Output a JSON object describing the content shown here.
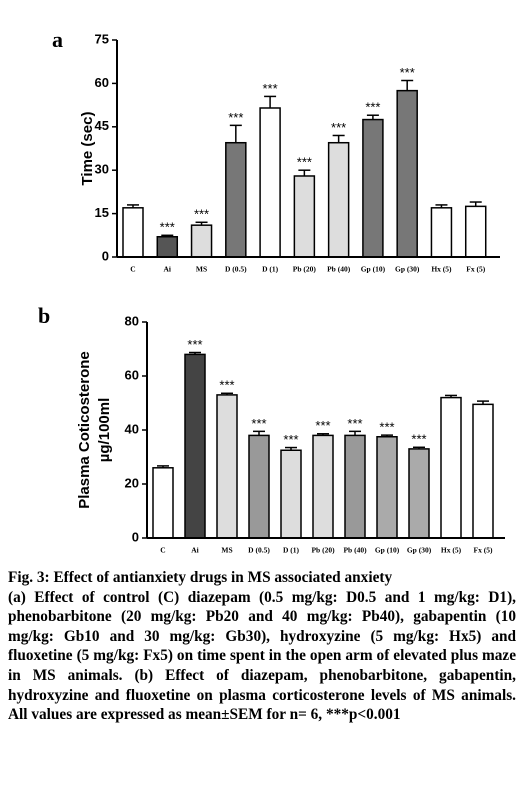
{
  "chart_data": [
    {
      "type": "bar",
      "panel": "a",
      "ylabel": "Time (sec)",
      "categories": [
        "C",
        "Ai",
        "MS",
        "D (0.5)",
        "D (1)",
        "Pb (20)",
        "Pb (40)",
        "Gp (10)",
        "Gp (30)",
        "Hx (5)",
        "Fx (5)"
      ],
      "values": [
        17,
        7,
        11,
        39.5,
        51.5,
        28,
        39.5,
        47.5,
        57.5,
        17,
        17.5
      ],
      "errors": [
        1,
        0.5,
        1,
        6,
        4,
        2,
        2.5,
        1.5,
        3.5,
        1,
        1.5
      ],
      "colors": [
        "#ffffff",
        "#555555",
        "#dddddd",
        "#777777",
        "#ffffff",
        "#dddddd",
        "#dddddd",
        "#777777",
        "#777777",
        "#ffffff",
        "#ffffff"
      ],
      "significance": [
        null,
        "***",
        "***",
        "***",
        "***",
        "***",
        "***",
        "***",
        "***",
        null,
        null
      ],
      "ylim": [
        0,
        75
      ],
      "yticks": [
        0,
        15,
        30,
        45,
        60,
        75
      ]
    },
    {
      "type": "bar",
      "panel": "b",
      "ylabel": "Plasma Coticosterone",
      "ylabel_unit": "µg/100ml",
      "categories": [
        "C",
        "Ai",
        "MS",
        "D (0.5)",
        "D (1)",
        "Pb (20)",
        "Pb (40)",
        "Gp (10)",
        "Gp (30)",
        "Hx (5)",
        "Fx (5)"
      ],
      "values": [
        26,
        68,
        53,
        38,
        32.5,
        38,
        38,
        37.5,
        33,
        52,
        49.5
      ],
      "errors": [
        0.7,
        0.7,
        0.6,
        1.5,
        1,
        0.6,
        1.5,
        0.6,
        0.6,
        0.8,
        1.2
      ],
      "colors": [
        "#ffffff",
        "#444444",
        "#dddddd",
        "#999999",
        "#dddddd",
        "#dddddd",
        "#999999",
        "#aaaaaa",
        "#aaaaaa",
        "#ffffff",
        "#ffffff"
      ],
      "significance": [
        null,
        "***",
        "***",
        "***",
        "***",
        "***",
        "***",
        "***",
        "***",
        null,
        null
      ],
      "ylim": [
        0,
        80
      ],
      "yticks": [
        0,
        20,
        40,
        60,
        80
      ]
    }
  ],
  "caption": {
    "title": "Fig. 3: Effect of antianxiety drugs in MS associated anxiety",
    "body": "(a) Effect of control (C) diazepam (0.5 mg/kg: D0.5 and 1 mg/kg: D1), phenobarbitone (20 mg/kg: Pb20 and 40 mg/kg: Pb40), gabapentin (10 mg/kg: Gb10 and 30 mg/kg: Gb30), hydroxyzine (5 mg/kg: Hx5) and fluoxetine (5 mg/kg: Fx5) on time spent in the open arm of elevated plus maze in MS animals. (b) Effect of diazepam, phenobarbitone, gabapentin, hydroxyzine and fluoxetine on plasma corticosterone levels of MS animals. All values are expressed as mean±SEM for n= 6, ***p<0.001"
  }
}
